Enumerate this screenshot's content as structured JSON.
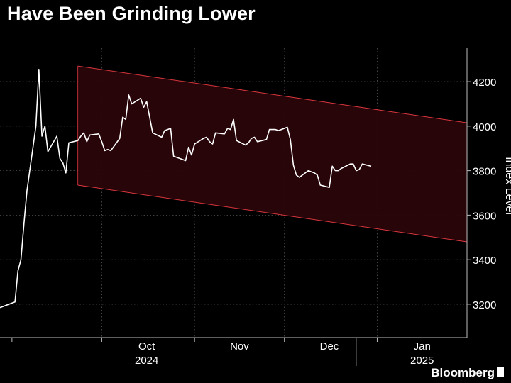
{
  "title": "Have Been Grinding Lower",
  "source": "Bloomberg",
  "colors": {
    "background": "#000000",
    "line": "#ffffff",
    "channel_edge": "#d9363e",
    "channel_fill": "#2a0509",
    "grid": "#555555",
    "text": "#ffffff"
  },
  "chart_data": {
    "type": "line",
    "title": "Have Been Grinding Lower",
    "ylabel": "Index Level",
    "xlabel": "",
    "ylim": [
      3050,
      4350
    ],
    "y_ticks": [
      3200,
      3400,
      3600,
      3800,
      4000,
      4200
    ],
    "y_tick_labels": [
      "3200",
      "3400",
      "3600",
      "3800",
      "4000",
      "4200"
    ],
    "x_ticks": [
      {
        "date": "2024-10-01",
        "label": "Oct",
        "year": "2024"
      },
      {
        "date": "2024-11-01",
        "label": "Nov",
        "year": ""
      },
      {
        "date": "2024-12-01",
        "label": "Dec",
        "year": ""
      },
      {
        "date": "2025-01-01",
        "label": "Jan",
        "year": "2025"
      }
    ],
    "xlim": [
      "2024-08-28",
      "2025-01-31"
    ],
    "grid": true,
    "axis_side": "right",
    "series": [
      {
        "points": [
          [
            "2024-08-28",
            3185
          ],
          [
            "2024-08-29",
            3190
          ],
          [
            "2024-08-30",
            3195
          ],
          [
            "2024-09-02",
            3210
          ],
          [
            "2024-09-03",
            3350
          ],
          [
            "2024-09-04",
            3400
          ],
          [
            "2024-09-05",
            3560
          ],
          [
            "2024-09-06",
            3710
          ],
          [
            "2024-09-09",
            4000
          ],
          [
            "2024-09-10",
            4255
          ],
          [
            "2024-09-11",
            3955
          ],
          [
            "2024-09-12",
            4000
          ],
          [
            "2024-09-13",
            3885
          ],
          [
            "2024-09-16",
            3955
          ],
          [
            "2024-09-17",
            3855
          ],
          [
            "2024-09-18",
            3835
          ],
          [
            "2024-09-19",
            3790
          ],
          [
            "2024-09-20",
            3925
          ],
          [
            "2024-09-23",
            3935
          ],
          [
            "2024-09-24",
            3955
          ],
          [
            "2024-09-25",
            3970
          ],
          [
            "2024-09-26",
            3930
          ],
          [
            "2024-09-27",
            3960
          ],
          [
            "2024-09-30",
            3965
          ],
          [
            "2024-10-01",
            3930
          ],
          [
            "2024-10-02",
            3890
          ],
          [
            "2024-10-03",
            3895
          ],
          [
            "2024-10-04",
            3890
          ],
          [
            "2024-10-07",
            3945
          ],
          [
            "2024-10-08",
            4040
          ],
          [
            "2024-10-09",
            4030
          ],
          [
            "2024-10-10",
            4140
          ],
          [
            "2024-10-11",
            4100
          ],
          [
            "2024-10-14",
            4125
          ],
          [
            "2024-10-15",
            4085
          ],
          [
            "2024-10-16",
            4110
          ],
          [
            "2024-10-17",
            4040
          ],
          [
            "2024-10-18",
            3970
          ],
          [
            "2024-10-21",
            3950
          ],
          [
            "2024-10-22",
            3980
          ],
          [
            "2024-10-23",
            3985
          ],
          [
            "2024-10-24",
            3990
          ],
          [
            "2024-10-25",
            3865
          ],
          [
            "2024-10-28",
            3850
          ],
          [
            "2024-10-29",
            3845
          ],
          [
            "2024-10-30",
            3905
          ],
          [
            "2024-10-31",
            3870
          ],
          [
            "2024-11-01",
            3920
          ],
          [
            "2024-11-04",
            3945
          ],
          [
            "2024-11-05",
            3950
          ],
          [
            "2024-11-06",
            3930
          ],
          [
            "2024-11-07",
            3920
          ],
          [
            "2024-11-08",
            3970
          ],
          [
            "2024-11-11",
            3965
          ],
          [
            "2024-11-12",
            3990
          ],
          [
            "2024-11-13",
            3985
          ],
          [
            "2024-11-14",
            4030
          ],
          [
            "2024-11-15",
            3935
          ],
          [
            "2024-11-18",
            3915
          ],
          [
            "2024-11-19",
            3925
          ],
          [
            "2024-11-20",
            3945
          ],
          [
            "2024-11-21",
            3950
          ],
          [
            "2024-11-22",
            3930
          ],
          [
            "2024-11-25",
            3940
          ],
          [
            "2024-11-26",
            3985
          ],
          [
            "2024-11-27",
            3985
          ],
          [
            "2024-11-28",
            3985
          ],
          [
            "2024-11-29",
            3980
          ],
          [
            "2024-12-02",
            3995
          ],
          [
            "2024-12-03",
            3940
          ],
          [
            "2024-12-04",
            3825
          ],
          [
            "2024-12-05",
            3780
          ],
          [
            "2024-12-06",
            3770
          ],
          [
            "2024-12-09",
            3800
          ],
          [
            "2024-12-10",
            3795
          ],
          [
            "2024-12-11",
            3790
          ],
          [
            "2024-12-12",
            3780
          ],
          [
            "2024-12-13",
            3735
          ],
          [
            "2024-12-16",
            3725
          ],
          [
            "2024-12-17",
            3820
          ],
          [
            "2024-12-18",
            3800
          ],
          [
            "2024-12-19",
            3800
          ],
          [
            "2024-12-20",
            3810
          ],
          [
            "2024-12-23",
            3830
          ],
          [
            "2024-12-24",
            3830
          ],
          [
            "2024-12-25",
            3800
          ],
          [
            "2024-12-26",
            3805
          ],
          [
            "2024-12-27",
            3830
          ],
          [
            "2024-12-30",
            3820
          ]
        ]
      }
    ],
    "channel": {
      "upper": [
        [
          "2024-09-23",
          4270
        ],
        [
          "2025-01-31",
          4015
        ]
      ],
      "lower": [
        [
          "2024-09-23",
          3735
        ],
        [
          "2025-01-31",
          3480
        ]
      ]
    }
  }
}
